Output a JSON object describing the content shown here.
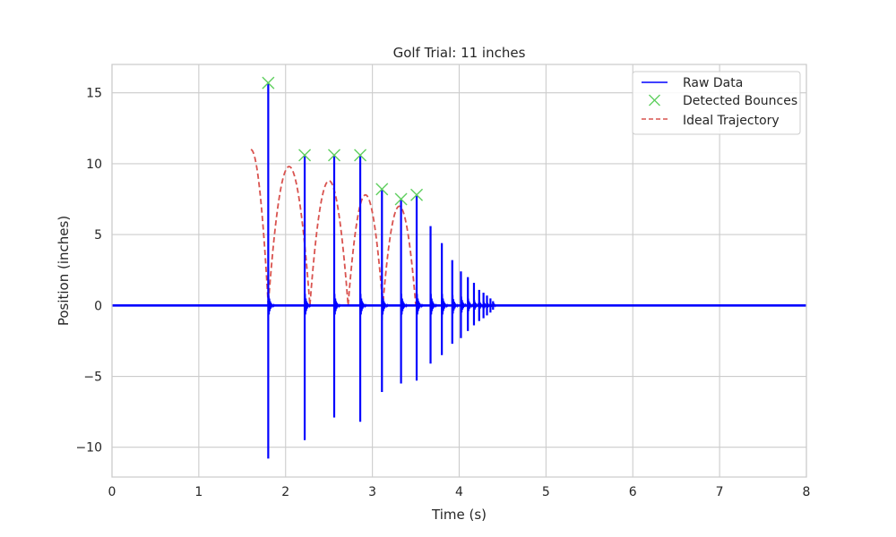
{
  "chart_data": {
    "type": "line",
    "title": "Golf Trial: 11 inches",
    "xlabel": "Time (s)",
    "ylabel": "Position (inches)",
    "xlim": [
      0,
      8
    ],
    "ylim": [
      -12.1,
      17
    ],
    "x_ticks": [
      0,
      1,
      2,
      3,
      4,
      5,
      6,
      7,
      8
    ],
    "x_tick_labels": [
      "0",
      "1",
      "2",
      "3",
      "4",
      "5",
      "6",
      "7",
      "8"
    ],
    "y_ticks": [
      -10,
      -5,
      0,
      5,
      10,
      15
    ],
    "y_tick_labels": [
      "−10",
      "−5",
      "0",
      "5",
      "10",
      "15"
    ],
    "grid": true,
    "legend_position": "top-right",
    "colors": {
      "raw": "#0000ff",
      "bounces": "#5fcf5f",
      "ideal": "#d9534f",
      "grid": "#cccccc",
      "frame": "#cccccc"
    },
    "series": [
      {
        "name": "Raw Data",
        "style": "solid line",
        "baseline": 0,
        "spikes": [
          {
            "x": 1.8,
            "max": 15.7,
            "min": -10.8
          },
          {
            "x": 2.22,
            "max": 10.6,
            "min": -9.5
          },
          {
            "x": 2.56,
            "max": 10.6,
            "min": -7.9
          },
          {
            "x": 2.86,
            "max": 10.6,
            "min": -8.2
          },
          {
            "x": 3.11,
            "max": 8.2,
            "min": -6.1
          },
          {
            "x": 3.33,
            "max": 7.5,
            "min": -5.5
          },
          {
            "x": 3.51,
            "max": 7.8,
            "min": -5.3
          },
          {
            "x": 3.67,
            "max": 5.6,
            "min": -4.1
          },
          {
            "x": 3.8,
            "max": 4.4,
            "min": -3.5
          },
          {
            "x": 3.92,
            "max": 3.2,
            "min": -2.7
          },
          {
            "x": 4.02,
            "max": 2.4,
            "min": -2.3
          },
          {
            "x": 4.1,
            "max": 2.0,
            "min": -1.8
          },
          {
            "x": 4.17,
            "max": 1.6,
            "min": -1.4
          },
          {
            "x": 4.23,
            "max": 1.1,
            "min": -1.1
          },
          {
            "x": 4.28,
            "max": 0.9,
            "min": -0.9
          },
          {
            "x": 4.32,
            "max": 0.7,
            "min": -0.7
          },
          {
            "x": 4.36,
            "max": 0.5,
            "min": -0.5
          },
          {
            "x": 4.39,
            "max": 0.3,
            "min": -0.3
          }
        ]
      },
      {
        "name": "Detected Bounces",
        "style": "x markers",
        "x": [
          1.8,
          2.22,
          2.56,
          2.86,
          3.11,
          3.33,
          3.51
        ],
        "y": [
          15.7,
          10.6,
          10.6,
          10.6,
          8.2,
          7.5,
          7.8
        ]
      },
      {
        "name": "Ideal Trajectory",
        "style": "dashed line",
        "start": {
          "x": 1.6,
          "y": 11.0
        },
        "first_contact": 1.8,
        "arcs": [
          {
            "from": 1.8,
            "to": 2.28,
            "peak": 9.8
          },
          {
            "from": 2.28,
            "to": 2.72,
            "peak": 8.8
          },
          {
            "from": 2.72,
            "to": 3.12,
            "peak": 7.8
          },
          {
            "from": 3.12,
            "to": 3.5,
            "peak": 7.0
          }
        ]
      }
    ]
  }
}
